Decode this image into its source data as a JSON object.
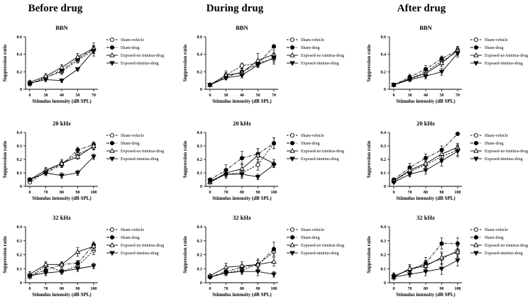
{
  "columns": [
    "Before drug",
    "During drug",
    "After drug"
  ],
  "series_styles": [
    {
      "marker": "circle-open",
      "line": "dashed"
    },
    {
      "marker": "circle-filled",
      "line": "dashdot"
    },
    {
      "marker": "triangle-open",
      "line": "solid"
    },
    {
      "marker": "triangle-down-filled",
      "line": "solid"
    }
  ],
  "chart_data": [
    {
      "type": "line",
      "column": "Before drug",
      "title": "BBN",
      "xlabel": "Stimulus intensity (dB SPL)",
      "ylabel": "Suppression ratio",
      "categories": [
        "0",
        "30",
        "40",
        "50",
        "70"
      ],
      "ylim": [
        0,
        0.6
      ],
      "yticks": [
        "0",
        "0.2",
        "0.4",
        "0.6"
      ],
      "series": [
        {
          "name": "Sham-vehicle",
          "values": [
            0.06,
            0.14,
            0.2,
            0.33,
            0.45
          ],
          "err": [
            0.02,
            0.02,
            0.03,
            0.03,
            0.04
          ]
        },
        {
          "name": "Sham-drug",
          "values": [
            0.06,
            0.13,
            0.22,
            0.35,
            0.46
          ],
          "err": [
            0.02,
            0.02,
            0.03,
            0.03,
            0.04
          ]
        },
        {
          "name": "Exposed-no tinnitus-drug",
          "values": [
            0.08,
            0.15,
            0.25,
            0.37,
            0.47
          ],
          "err": [
            0.02,
            0.03,
            0.03,
            0.04,
            0.06
          ]
        },
        {
          "name": "Exposed-tinnitus-drug",
          "values": [
            0.07,
            0.11,
            0.1,
            0.23,
            0.44
          ],
          "err": [
            0.02,
            0.02,
            0.02,
            0.02,
            0.06
          ]
        }
      ]
    },
    {
      "type": "line",
      "column": "During drug",
      "title": "BBN",
      "xlabel": "Stimulus intensity (dB SPL)",
      "ylabel": "Suppression ratio",
      "categories": [
        "0",
        "30",
        "40",
        "50",
        "70"
      ],
      "ylim": [
        0,
        0.6
      ],
      "yticks": [
        "0",
        "0.2",
        "0.4",
        "0.6"
      ],
      "series": [
        {
          "name": "Sham-vehicle",
          "values": [
            0.05,
            0.16,
            0.27,
            0.3,
            0.35
          ],
          "err": [
            0.01,
            0.03,
            0.03,
            0.04,
            0.06
          ]
        },
        {
          "name": "Sham-drug",
          "values": [
            0.05,
            0.14,
            0.2,
            0.29,
            0.49
          ],
          "err": [
            0.01,
            0.03,
            0.04,
            0.04,
            0.02
          ]
        },
        {
          "name": "Exposed-no tinnitus-drug",
          "values": [
            0.05,
            0.16,
            0.19,
            0.33,
            0.4
          ],
          "err": [
            0.01,
            0.05,
            0.04,
            0.08,
            0.05
          ]
        },
        {
          "name": "Exposed-tinnitus-drug",
          "values": [
            0.05,
            0.13,
            0.16,
            0.28,
            0.36
          ],
          "err": [
            0.01,
            0.02,
            0.03,
            0.03,
            0.05
          ]
        }
      ]
    },
    {
      "type": "line",
      "column": "After drug",
      "title": "BBN",
      "xlabel": "Stimulus intensity (dB SPL)",
      "ylabel": "Suppression ratio",
      "categories": [
        "0",
        "30",
        "40",
        "50",
        "70"
      ],
      "ylim": [
        0,
        0.6
      ],
      "yticks": [
        "0",
        "0.2",
        "0.4",
        "0.6"
      ],
      "series": [
        {
          "name": "Sham-vehicle",
          "values": [
            0.05,
            0.12,
            0.2,
            0.32,
            0.43
          ],
          "err": [
            0.01,
            0.02,
            0.03,
            0.04,
            0.04
          ]
        },
        {
          "name": "Sham-drug",
          "values": [
            0.05,
            0.14,
            0.23,
            0.35,
            0.45
          ],
          "err": [
            0.01,
            0.03,
            0.04,
            0.03,
            0.03
          ]
        },
        {
          "name": "Exposed-no tinnitus-drug",
          "values": [
            0.05,
            0.12,
            0.18,
            0.3,
            0.45
          ],
          "err": [
            0.01,
            0.03,
            0.04,
            0.04,
            0.04
          ]
        },
        {
          "name": "Exposed-tinnitus-drug",
          "values": [
            0.05,
            0.11,
            0.15,
            0.2,
            0.41
          ],
          "err": [
            0.01,
            0.02,
            0.03,
            0.04,
            0.04
          ]
        }
      ]
    },
    {
      "type": "line",
      "column": "Before drug",
      "title": "20 kHz",
      "xlabel": "Stimulus intensity (dB SPL)",
      "ylabel": "Suppression ratio",
      "categories": [
        "0",
        "70",
        "80",
        "90",
        "100"
      ],
      "ylim": [
        0,
        0.4
      ],
      "yticks": [
        "0",
        "0.1",
        "0.2",
        "0.3",
        "0.4"
      ],
      "series": [
        {
          "name": "Sham-vehicle",
          "values": [
            0.03,
            0.11,
            0.17,
            0.24,
            0.29
          ],
          "err": [
            0.01,
            0.02,
            0.02,
            0.02,
            0.02
          ]
        },
        {
          "name": "Sham-drug",
          "values": [
            0.05,
            0.1,
            0.16,
            0.27,
            0.31
          ],
          "err": [
            0.01,
            0.02,
            0.02,
            0.02,
            0.02
          ]
        },
        {
          "name": "Exposed-no tinnitus-drug",
          "values": [
            0.05,
            0.12,
            0.17,
            0.22,
            0.3
          ],
          "err": [
            0.01,
            0.02,
            0.03,
            0.02,
            0.03
          ]
        },
        {
          "name": "Exposed-tinnitus-drug",
          "values": [
            0.05,
            0.1,
            0.08,
            0.1,
            0.22
          ],
          "err": [
            0.01,
            0.02,
            0.02,
            0.02,
            0.02
          ]
        }
      ]
    },
    {
      "type": "line",
      "column": "During drug",
      "title": "20 kHz",
      "xlabel": "Stimulus intensity (dB SPL)",
      "ylabel": "Suppression ratio",
      "categories": [
        "0",
        "70",
        "80",
        "90",
        "100"
      ],
      "ylim": [
        0,
        0.4
      ],
      "yticks": [
        "0",
        "0.1",
        "0.2",
        "0.3",
        "0.4"
      ],
      "series": [
        {
          "name": "Sham-vehicle",
          "values": [
            0.03,
            0.09,
            0.1,
            0.16,
            0.32
          ],
          "err": [
            0.01,
            0.03,
            0.03,
            0.04,
            0.04
          ]
        },
        {
          "name": "Sham-drug",
          "values": [
            0.05,
            0.12,
            0.21,
            0.24,
            0.32
          ],
          "err": [
            0.01,
            0.04,
            0.05,
            0.04,
            0.04
          ]
        },
        {
          "name": "Exposed-no tinnitus-drug",
          "values": [
            0.03,
            0.1,
            0.13,
            0.23,
            0.17
          ],
          "err": [
            0.01,
            0.03,
            0.04,
            0.05,
            0.03
          ]
        },
        {
          "name": "Exposed-tinnitus-drug",
          "values": [
            0.04,
            0.09,
            0.09,
            0.07,
            0.16
          ],
          "err": [
            0.01,
            0.02,
            0.03,
            0.02,
            0.02
          ]
        }
      ]
    },
    {
      "type": "line",
      "column": "After drug",
      "title": "20 kHz",
      "xlabel": "Stimulus intensity (dB SPL)",
      "ylabel": "Suppression ratio",
      "categories": [
        "0",
        "70",
        "80",
        "90",
        "100"
      ],
      "ylim": [
        0,
        0.4
      ],
      "yticks": [
        "0",
        "0.1",
        "0.2",
        "0.3",
        "0.4"
      ],
      "series": [
        {
          "name": "Sham-vehicle",
          "values": [
            0.04,
            0.11,
            0.16,
            0.22,
            0.27
          ],
          "err": [
            0.01,
            0.03,
            0.03,
            0.04,
            0.04
          ]
        },
        {
          "name": "Sham-drug",
          "values": [
            0.05,
            0.14,
            0.21,
            0.27,
            0.39
          ],
          "err": [
            0.01,
            0.03,
            0.03,
            0.03,
            0.01
          ]
        },
        {
          "name": "Exposed-no tinnitus-drug",
          "values": [
            0.04,
            0.12,
            0.17,
            0.24,
            0.29
          ],
          "err": [
            0.01,
            0.03,
            0.03,
            0.04,
            0.03
          ]
        },
        {
          "name": "Exposed-tinnitus-drug",
          "values": [
            0.03,
            0.09,
            0.12,
            0.19,
            0.26
          ],
          "err": [
            0.01,
            0.02,
            0.03,
            0.04,
            0.04
          ]
        }
      ]
    },
    {
      "type": "line",
      "column": "Before drug",
      "title": "32 kHz",
      "xlabel": "Stimulus intensity (dB SPL)",
      "ylabel": "Suppression ratio",
      "categories": [
        "0",
        "70",
        "80",
        "90",
        "100"
      ],
      "ylim": [
        0,
        0.4
      ],
      "yticks": [
        "0",
        "0.1",
        "0.2",
        "0.3",
        "0.4"
      ],
      "series": [
        {
          "name": "Sham-vehicle",
          "values": [
            0.04,
            0.12,
            0.08,
            0.12,
            0.23
          ],
          "err": [
            0.01,
            0.02,
            0.02,
            0.02,
            0.03
          ]
        },
        {
          "name": "Sham-drug",
          "values": [
            0.05,
            0.09,
            0.13,
            0.14,
            0.27
          ],
          "err": [
            0.01,
            0.02,
            0.02,
            0.02,
            0.02
          ]
        },
        {
          "name": "Exposed-no tinnitus-drug",
          "values": [
            0.06,
            0.13,
            0.13,
            0.22,
            0.26
          ],
          "err": [
            0.02,
            0.02,
            0.02,
            0.03,
            0.03
          ]
        },
        {
          "name": "Exposed-tinnitus-drug",
          "values": [
            0.05,
            0.07,
            0.08,
            0.1,
            0.12
          ],
          "err": [
            0.01,
            0.02,
            0.02,
            0.02,
            0.02
          ]
        }
      ]
    },
    {
      "type": "line",
      "column": "During drug",
      "title": "32 kHz",
      "xlabel": "Stimulus intensity (dB SPL)",
      "ylabel": "Suppression ratio",
      "categories": [
        "0",
        "70",
        "80",
        "90",
        "100"
      ],
      "ylim": [
        0,
        0.4
      ],
      "yticks": [
        "0",
        "0.1",
        "0.2",
        "0.3",
        "0.4"
      ],
      "series": [
        {
          "name": "Sham-vehicle",
          "values": [
            0.04,
            0.07,
            0.09,
            0.13,
            0.22
          ],
          "err": [
            0.01,
            0.02,
            0.02,
            0.03,
            0.03
          ]
        },
        {
          "name": "Sham-drug",
          "values": [
            0.04,
            0.08,
            0.11,
            0.13,
            0.24
          ],
          "err": [
            0.01,
            0.02,
            0.02,
            0.03,
            0.05
          ]
        },
        {
          "name": "Exposed-no tinnitus-drug",
          "values": [
            0.05,
            0.11,
            0.12,
            0.13,
            0.15
          ],
          "err": [
            0.01,
            0.03,
            0.03,
            0.04,
            0.03
          ]
        },
        {
          "name": "Exposed-tinnitus-drug",
          "values": [
            0.04,
            0.07,
            0.08,
            0.08,
            0.06
          ],
          "err": [
            0.01,
            0.02,
            0.02,
            0.03,
            0.02
          ]
        }
      ]
    },
    {
      "type": "line",
      "column": "After drug",
      "title": "32 kHz",
      "xlabel": "Stimulus intensity (dB SPL)",
      "ylabel": "Suppression ratio",
      "categories": [
        "0",
        "70",
        "80",
        "90",
        "100"
      ],
      "ylim": [
        0,
        0.4
      ],
      "yticks": [
        "0",
        "0.1",
        "0.2",
        "0.3",
        "0.4"
      ],
      "series": [
        {
          "name": "Sham-vehicle",
          "values": [
            0.05,
            0.09,
            0.13,
            0.17,
            0.23
          ],
          "err": [
            0.02,
            0.03,
            0.03,
            0.04,
            0.04
          ]
        },
        {
          "name": "Sham-drug",
          "values": [
            0.05,
            0.09,
            0.14,
            0.28,
            0.28
          ],
          "err": [
            0.02,
            0.03,
            0.04,
            0.04,
            0.04
          ]
        },
        {
          "name": "Exposed-no tinnitus-drug",
          "values": [
            0.04,
            0.1,
            0.12,
            0.18,
            0.22
          ],
          "err": [
            0.02,
            0.03,
            0.04,
            0.04,
            0.04
          ]
        },
        {
          "name": "Exposed-tinnitus-drug",
          "values": [
            0.04,
            0.06,
            0.08,
            0.1,
            0.16
          ],
          "err": [
            0.01,
            0.02,
            0.03,
            0.04,
            0.04
          ]
        }
      ]
    }
  ]
}
